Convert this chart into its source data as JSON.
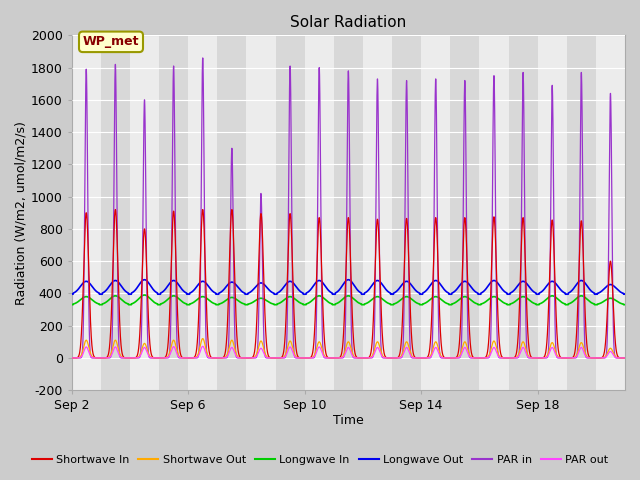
{
  "title": "Solar Radiation",
  "xlabel": "Time",
  "ylabel": "Radiation (W/m2, umol/m2/s)",
  "ylim": [
    -200,
    2000
  ],
  "yticks": [
    -200,
    0,
    200,
    400,
    600,
    800,
    1000,
    1200,
    1400,
    1600,
    1800,
    2000
  ],
  "x_tick_labels": [
    "Sep 2",
    "Sep 6",
    "Sep 10",
    "Sep 14",
    "Sep 18"
  ],
  "x_tick_positions": [
    0,
    4,
    8,
    12,
    16
  ],
  "watermark_text": "WP_met",
  "watermark_bg": "#ffffcc",
  "watermark_border": "#999900",
  "legend_entries": [
    {
      "label": "Shortwave In",
      "color": "#dd0000"
    },
    {
      "label": "Shortwave Out",
      "color": "#ffaa00"
    },
    {
      "label": "Longwave In",
      "color": "#00cc00"
    },
    {
      "label": "Longwave Out",
      "color": "#0000ee"
    },
    {
      "label": "PAR in",
      "color": "#9933cc"
    },
    {
      "label": "PAR out",
      "color": "#ff44ff"
    }
  ],
  "num_days": 19,
  "sw_in_peaks": [
    900,
    920,
    800,
    910,
    920,
    920,
    895,
    895,
    870,
    870,
    860,
    865,
    870,
    870,
    875,
    870,
    855,
    850,
    600
  ],
  "sw_out_peaks": [
    110,
    110,
    90,
    110,
    120,
    110,
    105,
    105,
    100,
    100,
    100,
    100,
    100,
    100,
    105,
    100,
    95,
    95,
    60
  ],
  "par_in_peaks": [
    1790,
    1820,
    1600,
    1810,
    1860,
    1300,
    1020,
    1810,
    1800,
    1780,
    1730,
    1720,
    1730,
    1720,
    1750,
    1770,
    1690,
    1770,
    1640
  ],
  "par_out_peaks": [
    68,
    68,
    65,
    70,
    72,
    65,
    60,
    68,
    68,
    65,
    65,
    65,
    65,
    65,
    65,
    65,
    65,
    65,
    40
  ],
  "lw_in_base": 330,
  "lw_in_bumps": [
    50,
    55,
    60,
    55,
    50,
    45,
    40,
    50,
    55,
    55,
    50,
    50,
    50,
    50,
    50,
    50,
    55,
    55,
    40
  ],
  "lw_out_base": 395,
  "lw_out_bumps": [
    80,
    85,
    90,
    85,
    80,
    75,
    70,
    80,
    85,
    90,
    85,
    80,
    85,
    80,
    85,
    80,
    80,
    85,
    60
  ],
  "fig_bg": "#cccccc",
  "plot_bg_light": "#ececec",
  "plot_bg_dark": "#d8d8d8",
  "grid_color": "#ffffff"
}
